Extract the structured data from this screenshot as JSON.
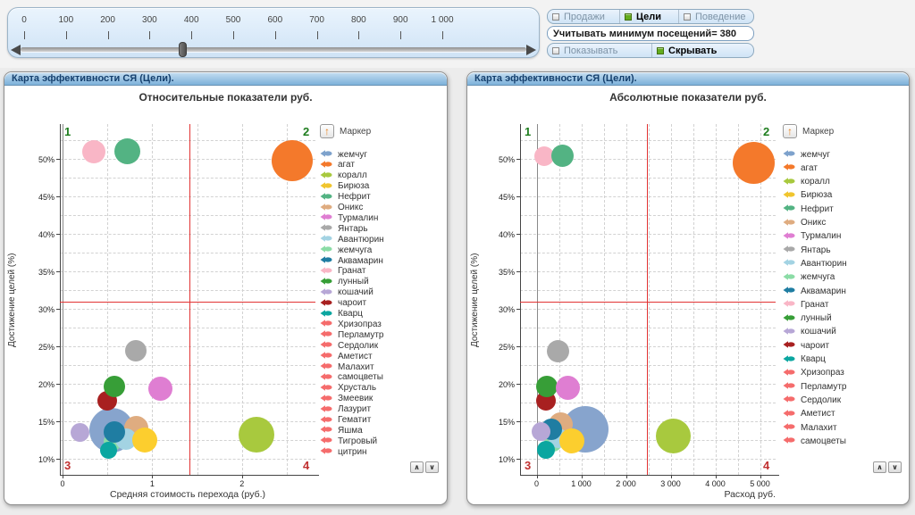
{
  "slider": {
    "min": 0,
    "max": 1000,
    "value": 380,
    "tick_values": [
      0,
      100,
      200,
      300,
      400,
      500,
      600,
      700,
      800,
      900,
      1000
    ],
    "tick_labels": [
      "0",
      "100",
      "200",
      "300",
      "400",
      "500",
      "600",
      "700",
      "800",
      "900",
      "1 000"
    ]
  },
  "controls": {
    "metric_toggles": [
      {
        "label": "Продажи",
        "selected": false
      },
      {
        "label": "Цели",
        "selected": true
      },
      {
        "label": "Поведение",
        "selected": false
      }
    ],
    "min_visits_label": "Учитывать минимум посещений",
    "min_visits_value": "= 380",
    "visibility_toggles": [
      {
        "label": "Показывать",
        "selected": false
      },
      {
        "label": "Скрывать",
        "selected": true
      }
    ]
  },
  "scroll_buttons": {
    "up": "∧",
    "down": "∨"
  },
  "chart_data": [
    {
      "type": "bubble",
      "panel_title": "Карта эффективности СЯ (Цели).",
      "title": "Относительные показатели руб.",
      "xlabel": "Средняя стоимость перехода (руб.)",
      "ylabel": "Достижение целей (%)",
      "xlabel_align": "center",
      "xlim": [
        -0.03,
        2.82
      ],
      "ylim": [
        7.9,
        54.6
      ],
      "x_ticks": [
        0,
        1,
        2
      ],
      "x_tick_labels": [
        "0",
        "1",
        "2"
      ],
      "y_ticks": [
        10,
        15,
        20,
        25,
        30,
        35,
        40,
        45,
        50
      ],
      "y_tick_labels": [
        "10%",
        "15%",
        "20%",
        "25%",
        "30%",
        "35%",
        "40%",
        "45%",
        "50%"
      ],
      "x_grid_step": 0.5,
      "y_grid_step": 2.5,
      "ref_line_x": 1.41,
      "ref_line_y": 31,
      "ref_color": "#e23333",
      "quadrant_labels": [
        "1",
        "2",
        "3",
        "4"
      ],
      "legend_title": "Маркер",
      "legend": [
        {
          "name": "жемчуг",
          "color": "#7ea2cc"
        },
        {
          "name": "агат",
          "color": "#f4792b"
        },
        {
          "name": "коралл",
          "color": "#a8c93e"
        },
        {
          "name": "Бирюза",
          "color": "#f0c52e"
        },
        {
          "name": "Нефрит",
          "color": "#53b383"
        },
        {
          "name": "Оникс",
          "color": "#dfac80"
        },
        {
          "name": "Турмалин",
          "color": "#df7ed2"
        },
        {
          "name": "Янтарь",
          "color": "#a9a9a9"
        },
        {
          "name": "Авантюрин",
          "color": "#a3d3e3"
        },
        {
          "name": "жемчуга",
          "color": "#8bdca6"
        },
        {
          "name": "Аквамарин",
          "color": "#1f7da2"
        },
        {
          "name": "Гранат",
          "color": "#f9b6c6"
        },
        {
          "name": "лунный",
          "color": "#379e37"
        },
        {
          "name": "кошачий",
          "color": "#b7a7d6"
        },
        {
          "name": "чароит",
          "color": "#a82020"
        },
        {
          "name": "Кварц",
          "color": "#0ba6a0"
        },
        {
          "name": "Хризопраз",
          "color": "#f56c6c"
        },
        {
          "name": "Перламутр",
          "color": "#f56c6c"
        },
        {
          "name": "Сердолик",
          "color": "#f56c6c"
        },
        {
          "name": "Аметист",
          "color": "#f56c6c"
        },
        {
          "name": "Малахит",
          "color": "#f56c6c"
        },
        {
          "name": "самоцветы",
          "color": "#f56c6c"
        },
        {
          "name": "Хрусталь",
          "color": "#f56c6c"
        },
        {
          "name": "Змеевик",
          "color": "#f56c6c"
        },
        {
          "name": "Лазурит",
          "color": "#f56c6c"
        },
        {
          "name": "Гематит",
          "color": "#f56c6c"
        },
        {
          "name": "Яшма",
          "color": "#f56c6c"
        },
        {
          "name": "Тигровый",
          "color": "#f56c6c"
        },
        {
          "name": "цитрин",
          "color": "#f56c6c"
        }
      ],
      "points": [
        {
          "name": "жемчуг",
          "x": 0.55,
          "y": 13.9,
          "r": 25,
          "color": "#87a4cd"
        },
        {
          "name": "Оникс",
          "x": 0.82,
          "y": 14.1,
          "r": 13.5,
          "color": "#dfac80"
        },
        {
          "name": "жемчуга",
          "x": 0.56,
          "y": 12.3,
          "r": 10,
          "color": "#8bdca6"
        },
        {
          "name": "Авантюрин",
          "x": 0.71,
          "y": 12.6,
          "r": 12,
          "color": "#a3d3e3"
        },
        {
          "name": "Бирюза",
          "x": 0.92,
          "y": 12.5,
          "r": 14,
          "color": "#fcce2e"
        },
        {
          "name": "Аквамарин",
          "x": 0.58,
          "y": 13.6,
          "r": 12,
          "color": "#1f7da2"
        },
        {
          "name": "Кварц",
          "x": 0.51,
          "y": 11.2,
          "r": 9.5,
          "color": "#0ba6a0"
        },
        {
          "name": "кошачий",
          "x": 0.19,
          "y": 13.5,
          "r": 10.5,
          "color": "#b7a7d6"
        },
        {
          "name": "Гранат",
          "x": 0.35,
          "y": 50.9,
          "r": 13,
          "color": "#f9b6c6"
        },
        {
          "name": "Нефрит",
          "x": 0.72,
          "y": 51.0,
          "r": 14.5,
          "color": "#53b383"
        },
        {
          "name": "чароит",
          "x": 0.5,
          "y": 17.8,
          "r": 11,
          "color": "#a82020"
        },
        {
          "name": "лунный",
          "x": 0.58,
          "y": 19.7,
          "r": 12,
          "color": "#379e37"
        },
        {
          "name": "Турмалин",
          "x": 1.09,
          "y": 19.4,
          "r": 13.5,
          "color": "#df7ed2"
        },
        {
          "name": "Янтарь",
          "x": 0.82,
          "y": 24.4,
          "r": 12,
          "color": "#a9a9a9"
        },
        {
          "name": "агат",
          "x": 2.56,
          "y": 49.7,
          "r": 23,
          "color": "#f4792b"
        },
        {
          "name": "коралл",
          "x": 2.16,
          "y": 13.2,
          "r": 20,
          "color": "#a8c93e"
        }
      ]
    },
    {
      "type": "bubble",
      "panel_title": "Карта эффективности СЯ (Цели).",
      "title": "Абсолютные показатели руб.",
      "xlabel": "Расход руб.",
      "ylabel": "Достижение целей (%)",
      "xlabel_align": "right",
      "xlim": [
        -370,
        5350
      ],
      "ylim": [
        7.9,
        54.6
      ],
      "x_ticks": [
        0,
        1000,
        2000,
        3000,
        4000,
        5000
      ],
      "x_tick_labels": [
        "0",
        "1 000",
        "2 000",
        "3 000",
        "4 000",
        "5 000"
      ],
      "y_ticks": [
        10,
        15,
        20,
        25,
        30,
        35,
        40,
        45,
        50
      ],
      "y_tick_labels": [
        "10%",
        "15%",
        "20%",
        "25%",
        "30%",
        "35%",
        "40%",
        "45%",
        "50%"
      ],
      "x_grid_step": 500,
      "y_grid_step": 2.5,
      "ref_line_x": 2470,
      "ref_line_y": 31,
      "ref_color": "#e23333",
      "quadrant_labels": [
        "1",
        "2",
        "3",
        "4"
      ],
      "legend_title": "Маркер",
      "legend": [
        {
          "name": "жемчуг",
          "color": "#7ea2cc"
        },
        {
          "name": "агат",
          "color": "#f4792b"
        },
        {
          "name": "коралл",
          "color": "#a8c93e"
        },
        {
          "name": "Бирюза",
          "color": "#f0c52e"
        },
        {
          "name": "Нефрит",
          "color": "#53b383"
        },
        {
          "name": "Оникс",
          "color": "#dfac80"
        },
        {
          "name": "Турмалин",
          "color": "#df7ed2"
        },
        {
          "name": "Янтарь",
          "color": "#a9a9a9"
        },
        {
          "name": "Авантюрин",
          "color": "#a3d3e3"
        },
        {
          "name": "жемчуга",
          "color": "#8bdca6"
        },
        {
          "name": "Аквамарин",
          "color": "#1f7da2"
        },
        {
          "name": "Гранат",
          "color": "#f9b6c6"
        },
        {
          "name": "лунный",
          "color": "#379e37"
        },
        {
          "name": "кошачий",
          "color": "#b7a7d6"
        },
        {
          "name": "чароит",
          "color": "#a82020"
        },
        {
          "name": "Кварц",
          "color": "#0ba6a0"
        },
        {
          "name": "Хризопраз",
          "color": "#f56c6c"
        },
        {
          "name": "Перламутр",
          "color": "#f56c6c"
        },
        {
          "name": "Сердолик",
          "color": "#f56c6c"
        },
        {
          "name": "Аметист",
          "color": "#f56c6c"
        },
        {
          "name": "Малахит",
          "color": "#f56c6c"
        },
        {
          "name": "самоцветы",
          "color": "#f56c6c"
        }
      ],
      "points": [
        {
          "name": "жемчуг",
          "x": 1080,
          "y": 14.0,
          "r": 26,
          "color": "#87a4cd"
        },
        {
          "name": "Оникс",
          "x": 530,
          "y": 14.6,
          "r": 13.5,
          "color": "#dfac80"
        },
        {
          "name": "жемчуга",
          "x": 370,
          "y": 12.2,
          "r": 10,
          "color": "#8bdca6"
        },
        {
          "name": "Авантюрин",
          "x": 480,
          "y": 12.8,
          "r": 11,
          "color": "#a3d3e3"
        },
        {
          "name": "Бирюза",
          "x": 780,
          "y": 12.4,
          "r": 14,
          "color": "#fcce2e"
        },
        {
          "name": "Аквамарин",
          "x": 330,
          "y": 14.0,
          "r": 12,
          "color": "#1f7da2"
        },
        {
          "name": "Кварц",
          "x": 200,
          "y": 11.2,
          "r": 10,
          "color": "#0ba6a0"
        },
        {
          "name": "кошачий",
          "x": 100,
          "y": 13.7,
          "r": 10.5,
          "color": "#b7a7d6"
        },
        {
          "name": "Гранат",
          "x": 170,
          "y": 50.3,
          "r": 11,
          "color": "#f9b6c6"
        },
        {
          "name": "Нефрит",
          "x": 580,
          "y": 50.4,
          "r": 12.5,
          "color": "#53b383"
        },
        {
          "name": "чароит",
          "x": 200,
          "y": 17.8,
          "r": 11,
          "color": "#a82020"
        },
        {
          "name": "лунный",
          "x": 230,
          "y": 19.7,
          "r": 12,
          "color": "#379e37"
        },
        {
          "name": "Турмалин",
          "x": 700,
          "y": 19.5,
          "r": 13.5,
          "color": "#df7ed2"
        },
        {
          "name": "Янтарь",
          "x": 480,
          "y": 24.3,
          "r": 12.5,
          "color": "#a9a9a9"
        },
        {
          "name": "агат",
          "x": 4850,
          "y": 49.4,
          "r": 23.5,
          "color": "#f4792b"
        },
        {
          "name": "коралл",
          "x": 3050,
          "y": 13.1,
          "r": 19.5,
          "color": "#a8c93e"
        }
      ]
    }
  ]
}
